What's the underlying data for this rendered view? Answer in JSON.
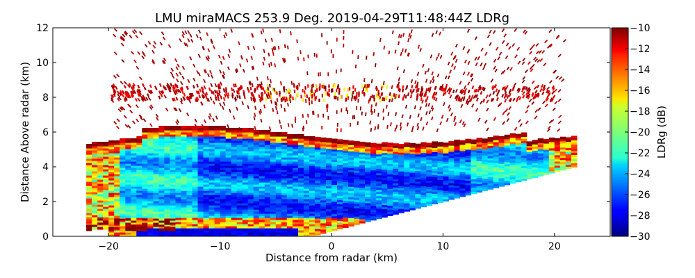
{
  "chart_data": {
    "type": "heatmap",
    "title": "LMU miraMACS 253.9 Deg. 2019-04-29T11:48:44Z  LDRg",
    "xlabel": "Distance from radar (km)",
    "ylabel": "Distance Above radar  (km)",
    "xlim": [
      -25,
      25
    ],
    "ylim": [
      0,
      12
    ],
    "xticks": [
      -20,
      -10,
      0,
      10,
      20
    ],
    "xtick_labels": [
      "−20",
      "−10",
      "0",
      "10",
      "20"
    ],
    "yticks": [
      0,
      2,
      4,
      6,
      8,
      10,
      12
    ],
    "ytick_labels": [
      "0",
      "2",
      "4",
      "6",
      "8",
      "10",
      "12"
    ],
    "colorbar": {
      "label": "LDRg (dB)",
      "range": [
        -30,
        -10
      ],
      "ticks": [
        -30,
        -28,
        -26,
        -24,
        -22,
        -20,
        -18,
        -16,
        -14,
        -12,
        -10
      ],
      "tick_labels": [
        "−30",
        "−28",
        "−26",
        "−24",
        "−22",
        "−20",
        "−18",
        "−16",
        "−14",
        "−12",
        "−10"
      ],
      "colormap": "jet"
    },
    "regions": [
      {
        "description": "main cloud layer",
        "x": [
          -22,
          22
        ],
        "y_bottom_left": 1.0,
        "y_bottom_right": 4.0,
        "y_top": 6.0,
        "ldr_typical": -26
      },
      {
        "description": "cloud top edge",
        "y": [
          5.5,
          6.3
        ],
        "ldr_typical": -14
      },
      {
        "description": "upper scattered layer",
        "x": [
          -20,
          20
        ],
        "y": [
          7.8,
          8.8
        ],
        "ldr_typical": -11
      },
      {
        "description": "sparse returns",
        "y": [
          6.5,
          12
        ],
        "ldr_typical": -10
      },
      {
        "description": "low level layer",
        "x": [
          -22,
          5
        ],
        "y": [
          0,
          1.0
        ],
        "ldr_typical": -16
      }
    ]
  }
}
